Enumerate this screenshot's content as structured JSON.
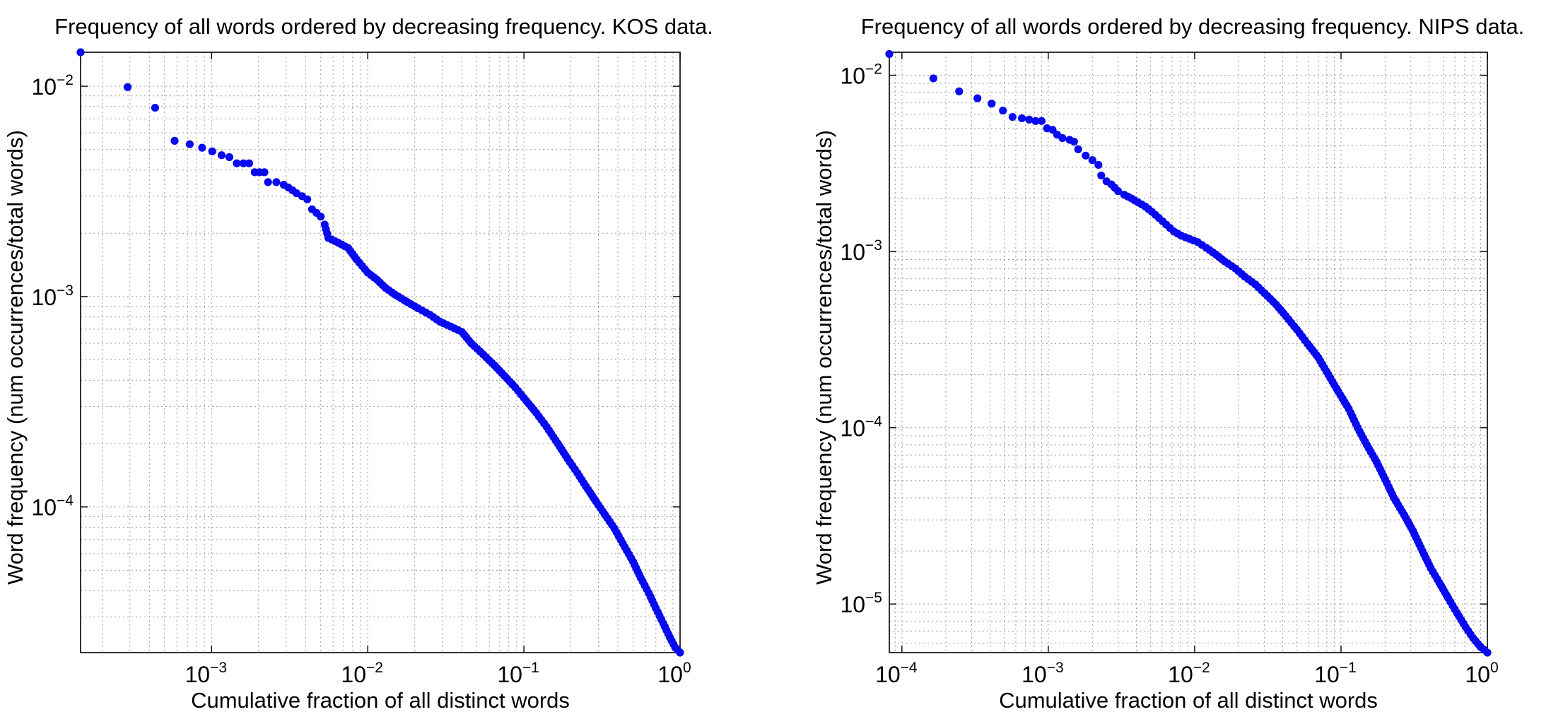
{
  "chart_data": [
    {
      "type": "scatter",
      "title": "Frequency of all words ordered by decreasing frequency. KOS data.",
      "xlabel": "Cumulative fraction of all distinct words",
      "ylabel": "Word frequency (num occurrences/total words)",
      "x_scale": "log",
      "y_scale": "log",
      "xlim": [
        0.000145,
        1
      ],
      "ylim": [
        2.03e-05,
        0.0145
      ],
      "grid": true,
      "x_ticks": [
        {
          "base": "10",
          "exp": "−3",
          "value": 0.001
        },
        {
          "base": "10",
          "exp": "−2",
          "value": 0.01
        },
        {
          "base": "10",
          "exp": "−1",
          "value": 0.1
        },
        {
          "base": "10",
          "exp": "0",
          "value": 1
        }
      ],
      "y_ticks": [
        {
          "base": "10",
          "exp": "−4",
          "value": 0.0001
        },
        {
          "base": "10",
          "exp": "−3",
          "value": 0.001
        },
        {
          "base": "10",
          "exp": "−2",
          "value": 0.01
        }
      ],
      "marker_color": "#0a0aef",
      "points": [
        [
          0.000145,
          0.0145
        ],
        [
          0.00029,
          0.0099
        ],
        [
          0.000435,
          0.0079
        ],
        [
          0.00058,
          0.0055
        ],
        [
          0.000725,
          0.0053
        ],
        [
          0.00087,
          0.0051
        ],
        [
          0.00101,
          0.0049
        ],
        [
          0.00116,
          0.0047
        ],
        [
          0.0013,
          0.0046
        ],
        [
          0.00145,
          0.0043
        ],
        [
          0.0016,
          0.0043
        ],
        [
          0.00174,
          0.0043
        ],
        [
          0.00189,
          0.0039
        ],
        [
          0.00203,
          0.0039
        ],
        [
          0.00218,
          0.0039
        ],
        [
          0.0023,
          0.0035
        ],
        [
          0.0026,
          0.0035
        ],
        [
          0.0029,
          0.0034
        ],
        [
          0.0031,
          0.0033
        ],
        [
          0.0033,
          0.0032
        ],
        [
          0.0035,
          0.0031
        ],
        [
          0.0038,
          0.003
        ],
        [
          0.0041,
          0.0029
        ],
        [
          0.0044,
          0.0026
        ],
        [
          0.0047,
          0.0025
        ],
        [
          0.005,
          0.0024
        ],
        [
          0.0053,
          0.0022
        ],
        [
          0.0056,
          0.0019
        ],
        [
          0.0065,
          0.0018
        ],
        [
          0.0075,
          0.0017
        ],
        [
          0.0085,
          0.0015
        ],
        [
          0.01,
          0.0013
        ],
        [
          0.0115,
          0.0012
        ],
        [
          0.013,
          0.0011
        ],
        [
          0.015,
          0.00102
        ],
        [
          0.018,
          0.00094
        ],
        [
          0.021,
          0.00088
        ],
        [
          0.025,
          0.00082
        ],
        [
          0.029,
          0.00076
        ],
        [
          0.034,
          0.00072
        ],
        [
          0.04,
          0.00068
        ],
        [
          0.046,
          0.0006
        ],
        [
          0.055,
          0.00053
        ],
        [
          0.065,
          0.00047
        ],
        [
          0.075,
          0.00042
        ],
        [
          0.088,
          0.00037
        ],
        [
          0.1,
          0.00033
        ],
        [
          0.12,
          0.00028
        ],
        [
          0.14,
          0.00024
        ],
        [
          0.165,
          0.0002
        ],
        [
          0.19,
          0.00017
        ],
        [
          0.22,
          0.000145
        ],
        [
          0.25,
          0.000125
        ],
        [
          0.29,
          0.000106
        ],
        [
          0.33,
          9.2e-05
        ],
        [
          0.38,
          7.9e-05
        ],
        [
          0.43,
          6.7e-05
        ],
        [
          0.5,
          5.5e-05
        ],
        [
          0.56,
          4.6e-05
        ],
        [
          0.63,
          3.9e-05
        ],
        [
          0.7,
          3.3e-05
        ],
        [
          0.78,
          2.8e-05
        ],
        [
          0.86,
          2.4e-05
        ],
        [
          0.93,
          2.15e-05
        ],
        [
          1.0,
          2.03e-05
        ]
      ]
    },
    {
      "type": "scatter",
      "title": "Frequency of all words ordered by decreasing frequency. NIPS data.",
      "xlabel": "Cumulative fraction of all distinct words",
      "ylabel": "Word frequency (num occurrences/total words)",
      "x_scale": "log",
      "y_scale": "log",
      "xlim": [
        8.2e-05,
        1
      ],
      "ylim": [
        5.3e-06,
        0.0135
      ],
      "grid": true,
      "x_ticks": [
        {
          "base": "10",
          "exp": "−4",
          "value": 0.0001
        },
        {
          "base": "10",
          "exp": "−3",
          "value": 0.001
        },
        {
          "base": "10",
          "exp": "−2",
          "value": 0.01
        },
        {
          "base": "10",
          "exp": "−1",
          "value": 0.1
        },
        {
          "base": "10",
          "exp": "0",
          "value": 1
        }
      ],
      "y_ticks": [
        {
          "base": "10",
          "exp": "−5",
          "value": 1e-05
        },
        {
          "base": "10",
          "exp": "−4",
          "value": 0.0001
        },
        {
          "base": "10",
          "exp": "−3",
          "value": 0.001
        },
        {
          "base": "10",
          "exp": "−2",
          "value": 0.01
        }
      ],
      "marker_color": "#0a0aef",
      "points": [
        [
          8.2e-05,
          0.0132
        ],
        [
          0.000164,
          0.0096
        ],
        [
          0.000246,
          0.0081
        ],
        [
          0.000328,
          0.0074
        ],
        [
          0.00041,
          0.0069
        ],
        [
          0.00049,
          0.0063
        ],
        [
          0.00057,
          0.0058
        ],
        [
          0.00066,
          0.0057
        ],
        [
          0.00074,
          0.0056
        ],
        [
          0.00082,
          0.0055
        ],
        [
          0.0009,
          0.0055
        ],
        [
          0.00098,
          0.005
        ],
        [
          0.00107,
          0.0049
        ],
        [
          0.00115,
          0.0046
        ],
        [
          0.00125,
          0.0044
        ],
        [
          0.0014,
          0.0043
        ],
        [
          0.0015,
          0.0042
        ],
        [
          0.0016,
          0.0038
        ],
        [
          0.0018,
          0.0035
        ],
        [
          0.002,
          0.0033
        ],
        [
          0.0022,
          0.0031
        ],
        [
          0.0023,
          0.0027
        ],
        [
          0.0025,
          0.0025
        ],
        [
          0.0027,
          0.0024
        ],
        [
          0.003,
          0.0022
        ],
        [
          0.0033,
          0.0021
        ],
        [
          0.0037,
          0.002
        ],
        [
          0.0041,
          0.0019
        ],
        [
          0.0046,
          0.0018
        ],
        [
          0.0051,
          0.00168
        ],
        [
          0.0057,
          0.00155
        ],
        [
          0.0064,
          0.00142
        ],
        [
          0.0072,
          0.0013
        ],
        [
          0.0081,
          0.00123
        ],
        [
          0.0092,
          0.00118
        ],
        [
          0.0105,
          0.00113
        ],
        [
          0.012,
          0.00105
        ],
        [
          0.014,
          0.00096
        ],
        [
          0.016,
          0.00088
        ],
        [
          0.019,
          0.0008
        ],
        [
          0.022,
          0.00072
        ],
        [
          0.026,
          0.00065
        ],
        [
          0.03,
          0.00058
        ],
        [
          0.036,
          0.0005
        ],
        [
          0.042,
          0.00043
        ],
        [
          0.05,
          0.00036
        ],
        [
          0.059,
          0.0003
        ],
        [
          0.07,
          0.00025
        ],
        [
          0.082,
          0.0002
        ],
        [
          0.096,
          0.00016
        ],
        [
          0.113,
          0.000128
        ],
        [
          0.13,
          0.0001
        ],
        [
          0.15,
          8e-05
        ],
        [
          0.175,
          6.4e-05
        ],
        [
          0.2,
          5.1e-05
        ],
        [
          0.23,
          4e-05
        ],
        [
          0.27,
          3.2e-05
        ],
        [
          0.31,
          2.6e-05
        ],
        [
          0.36,
          2e-05
        ],
        [
          0.41,
          1.6e-05
        ],
        [
          0.47,
          1.32e-05
        ],
        [
          0.54,
          1.08e-05
        ],
        [
          0.62,
          8.9e-06
        ],
        [
          0.71,
          7.4e-06
        ],
        [
          0.8,
          6.4e-06
        ],
        [
          0.9,
          5.7e-06
        ],
        [
          1.0,
          5.3e-06
        ]
      ]
    }
  ]
}
